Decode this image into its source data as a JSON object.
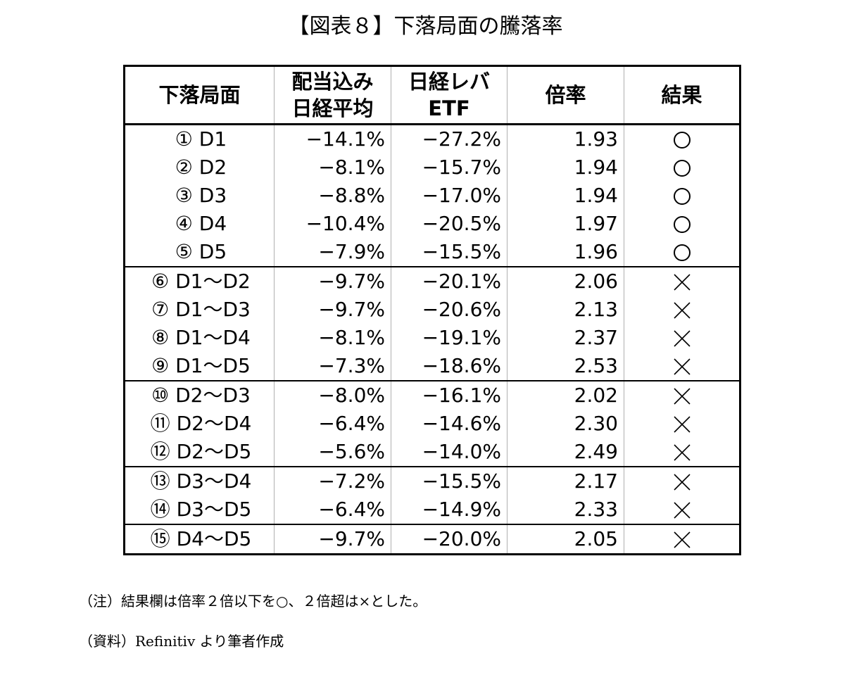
{
  "title": "【図表８】下落局面の騰落率",
  "table": {
    "headers": [
      {
        "lines": [
          "下落局面"
        ]
      },
      {
        "lines": [
          "配当込み",
          "日経平均"
        ]
      },
      {
        "lines": [
          "日経レバ",
          "ETF"
        ]
      },
      {
        "lines": [
          "倍率"
        ]
      },
      {
        "lines": [
          "結果"
        ]
      }
    ],
    "rows": [
      {
        "phase": "① D1",
        "nikkei": "−14.1%",
        "lev_etf": "−27.2%",
        "ratio": "1.93",
        "result": "circle",
        "group_end": false
      },
      {
        "phase": "② D2",
        "nikkei": "−8.1%",
        "lev_etf": "−15.7%",
        "ratio": "1.94",
        "result": "circle",
        "group_end": false
      },
      {
        "phase": "③ D3",
        "nikkei": "−8.8%",
        "lev_etf": "−17.0%",
        "ratio": "1.94",
        "result": "circle",
        "group_end": false
      },
      {
        "phase": "④ D4",
        "nikkei": "−10.4%",
        "lev_etf": "−20.5%",
        "ratio": "1.97",
        "result": "circle",
        "group_end": false
      },
      {
        "phase": "⑤ D5",
        "nikkei": "−7.9%",
        "lev_etf": "−15.5%",
        "ratio": "1.96",
        "result": "circle",
        "group_end": true
      },
      {
        "phase": "⑥ D1〜D2",
        "nikkei": "−9.7%",
        "lev_etf": "−20.1%",
        "ratio": "2.06",
        "result": "cross",
        "group_end": false
      },
      {
        "phase": "⑦ D1〜D3",
        "nikkei": "−9.7%",
        "lev_etf": "−20.6%",
        "ratio": "2.13",
        "result": "cross",
        "group_end": false
      },
      {
        "phase": "⑧ D1〜D4",
        "nikkei": "−8.1%",
        "lev_etf": "−19.1%",
        "ratio": "2.37",
        "result": "cross",
        "group_end": false
      },
      {
        "phase": "⑨ D1〜D5",
        "nikkei": "−7.3%",
        "lev_etf": "−18.6%",
        "ratio": "2.53",
        "result": "cross",
        "group_end": true
      },
      {
        "phase": "⑩ D2〜D3",
        "nikkei": "−8.0%",
        "lev_etf": "−16.1%",
        "ratio": "2.02",
        "result": "cross",
        "group_end": false
      },
      {
        "phase": "⑪ D2〜D4",
        "nikkei": "−6.4%",
        "lev_etf": "−14.6%",
        "ratio": "2.30",
        "result": "cross",
        "group_end": false
      },
      {
        "phase": "⑫ D2〜D5",
        "nikkei": "−5.6%",
        "lev_etf": "−14.0%",
        "ratio": "2.49",
        "result": "cross",
        "group_end": true
      },
      {
        "phase": "⑬ D3〜D4",
        "nikkei": "−7.2%",
        "lev_etf": "−15.5%",
        "ratio": "2.17",
        "result": "cross",
        "group_end": false
      },
      {
        "phase": "⑭ D3〜D5",
        "nikkei": "−6.4%",
        "lev_etf": "−14.9%",
        "ratio": "2.33",
        "result": "cross",
        "group_end": true
      },
      {
        "phase": "⑮ D4〜D5",
        "nikkei": "−9.7%",
        "lev_etf": "−20.0%",
        "ratio": "2.05",
        "result": "cross",
        "group_end": false
      }
    ]
  },
  "notes": {
    "note": "（注）結果欄は倍率２倍以下を○、２倍超は×とした。",
    "source": "（資料）Refinitiv より筆者作成"
  }
}
